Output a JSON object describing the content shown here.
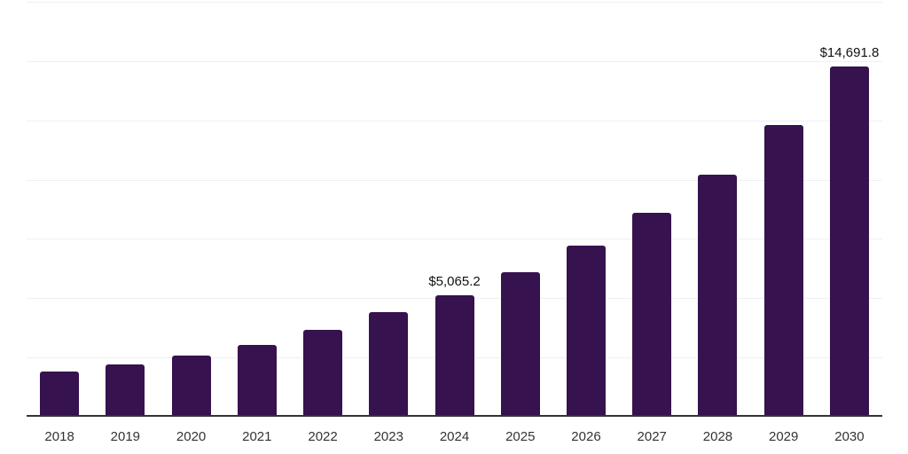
{
  "chart": {
    "background_color": "#ffffff",
    "bar_color": "#36124E",
    "grid_color": "#f0f0f3",
    "axis_color": "#333333",
    "tick_label_color": "#333333",
    "value_label_color": "#111111"
  },
  "chart_data": {
    "type": "bar",
    "title": "",
    "xlabel": "",
    "ylabel": "",
    "categories": [
      "2018",
      "2019",
      "2020",
      "2021",
      "2022",
      "2023",
      "2024",
      "2025",
      "2026",
      "2027",
      "2028",
      "2029",
      "2030"
    ],
    "values": [
      1830,
      2130,
      2500,
      2950,
      3610,
      4340,
      5065.2,
      6020,
      7140,
      8525,
      10130,
      12225,
      14691.8
    ],
    "data_labels": [
      {
        "index": 6,
        "text": "$5,065.2"
      },
      {
        "index": 12,
        "text": "$14,691.8"
      }
    ],
    "ylim": [
      0,
      17575
    ],
    "y_gridline_values": [
      2500,
      5000,
      7500,
      10000,
      12500,
      15000,
      17500
    ],
    "grid": "horizontal",
    "legend_position": "none",
    "y_axis_tick_labels_visible": false
  }
}
